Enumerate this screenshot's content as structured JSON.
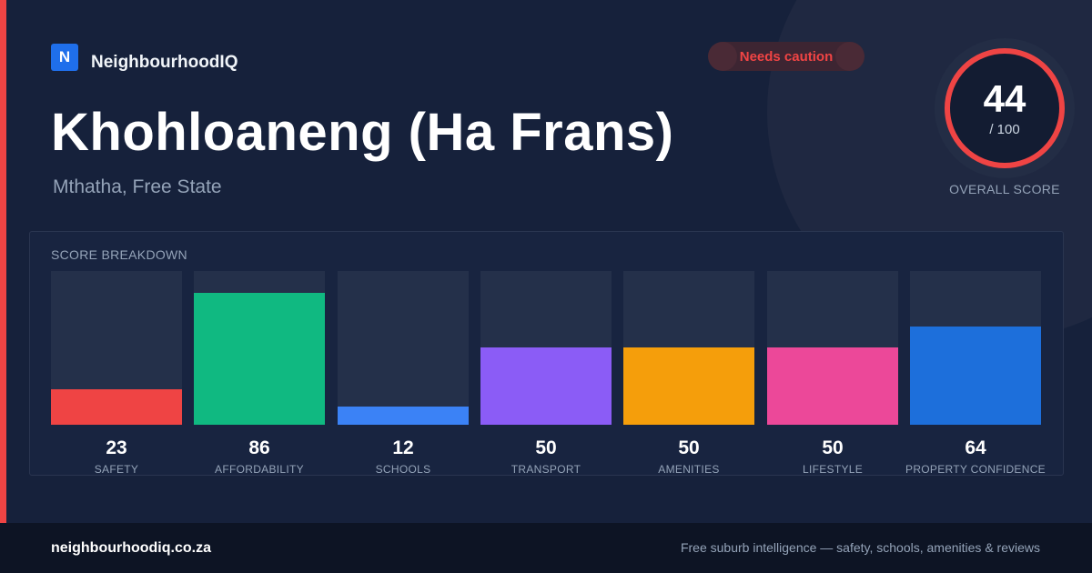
{
  "brand": {
    "logo_letter": "N",
    "name": "NeighbourhoodIQ"
  },
  "title": "Khohloaneng (Ha Frans)",
  "subtitle": "Mthatha, Free State",
  "badge": {
    "label": "Needs caution",
    "color": "#ef4444"
  },
  "overall": {
    "score": "44",
    "max": "/ 100",
    "caption": "OVERALL SCORE",
    "ring_color": "#ef4444"
  },
  "breakdown": {
    "title": "SCORE BREAKDOWN",
    "max_value": 100,
    "items": [
      {
        "label": "SAFETY",
        "value": "23",
        "color": "#ef4444"
      },
      {
        "label": "AFFORDABILITY",
        "value": "86",
        "color": "#10b981"
      },
      {
        "label": "SCHOOLS",
        "value": "12",
        "color": "#3b82f6"
      },
      {
        "label": "TRANSPORT",
        "value": "50",
        "color": "#8b5cf6"
      },
      {
        "label": "AMENITIES",
        "value": "50",
        "color": "#f59e0b"
      },
      {
        "label": "LIFESTYLE",
        "value": "50",
        "color": "#ec4899"
      },
      {
        "label": "PROPERTY CONFIDENCE",
        "value": "64",
        "color": "#1d6fdb"
      }
    ]
  },
  "footer": {
    "domain": "neighbourhoodiq.co.za",
    "tagline": "Free suburb intelligence — safety, schools, amenities & reviews"
  }
}
